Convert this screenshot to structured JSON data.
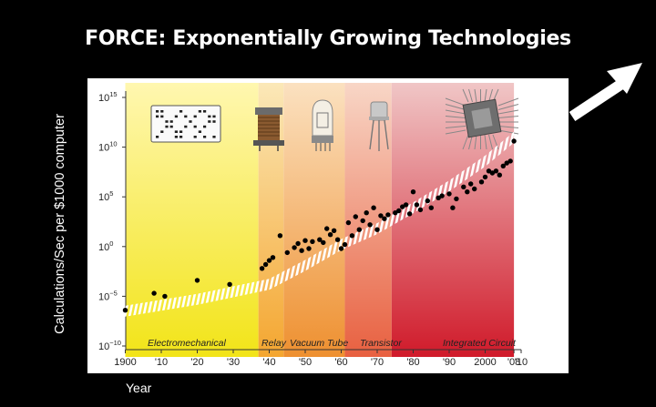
{
  "page": {
    "title": "FORCE: Exponentially Growing Technologies",
    "colors": {
      "background": "#000000",
      "panel": "#ffffff",
      "trend": "#ffffff",
      "points": "#000000"
    }
  },
  "chart_data": {
    "type": "scatter",
    "title": "",
    "xlabel": "Year",
    "ylabel": "Calculations/Sec per $1000 computer",
    "xlim": [
      1900,
      2010
    ],
    "ylim": [
      -10,
      15
    ],
    "y_scale": "log10",
    "x_ticks": [
      "1900",
      "'10",
      "'20",
      "'30",
      "'40",
      "'50",
      "'60",
      "'70",
      "'80",
      "'90",
      "2000",
      "'08",
      "'10"
    ],
    "y_ticks": [
      -10,
      -5,
      0,
      5,
      10,
      15
    ],
    "y_tick_label_base": "10",
    "eras": [
      {
        "name": "Electromechanical",
        "start": 1900,
        "end": 1937,
        "color_start": "#fff7b0",
        "color_end": "#f2e418",
        "icon": "punch-card-icon"
      },
      {
        "name": "Relay",
        "start": 1937,
        "end": 1944,
        "color_start": "#fbe8b8",
        "color_end": "#f4a630",
        "icon": "relay-icon"
      },
      {
        "name": "Vacuum Tube",
        "start": 1944,
        "end": 1961,
        "color_start": "#fbe1c0",
        "color_end": "#ee9030",
        "icon": "vacuum-tube-icon"
      },
      {
        "name": "Transistor",
        "start": 1961,
        "end": 1974,
        "color_start": "#f8d6c6",
        "color_end": "#e86040",
        "icon": "transistor-icon"
      },
      {
        "name": "Integrated Circuit",
        "start": 1974,
        "end": 2008,
        "color_start": "#f0c6c6",
        "color_end": "#d01a2a",
        "icon": "microchip-icon"
      }
    ],
    "trend": [
      [
        1900,
        -6.5
      ],
      [
        1920,
        -5.3
      ],
      [
        1940,
        -3.8
      ],
      [
        1950,
        -1.9
      ],
      [
        1960,
        0.2
      ],
      [
        1970,
        1.8
      ],
      [
        1980,
        3.9
      ],
      [
        1990,
        6.1
      ],
      [
        2000,
        8.6
      ],
      [
        2008,
        11
      ]
    ],
    "points": [
      [
        1900,
        -6.4
      ],
      [
        1908,
        -4.7
      ],
      [
        1911,
        -5
      ],
      [
        1920,
        -3.4
      ],
      [
        1929,
        -3.8
      ],
      [
        1938,
        -2.2
      ],
      [
        1939,
        -1.8
      ],
      [
        1940,
        -1.4
      ],
      [
        1941,
        -1.1
      ],
      [
        1943,
        1.1
      ],
      [
        1945,
        -0.6
      ],
      [
        1947,
        -0.1
      ],
      [
        1948,
        0.3
      ],
      [
        1949,
        -0.4
      ],
      [
        1950,
        0.6
      ],
      [
        1951,
        -0.2
      ],
      [
        1952,
        0.5
      ],
      [
        1954,
        0.7
      ],
      [
        1955,
        0.4
      ],
      [
        1956,
        1.8
      ],
      [
        1957,
        1.2
      ],
      [
        1958,
        1.6
      ],
      [
        1959,
        0.7
      ],
      [
        1960,
        -0.2
      ],
      [
        1961,
        0.2
      ],
      [
        1962,
        2.4
      ],
      [
        1963,
        1.1
      ],
      [
        1964,
        3
      ],
      [
        1965,
        1.7
      ],
      [
        1966,
        2.6
      ],
      [
        1967,
        3.4
      ],
      [
        1968,
        2.2
      ],
      [
        1969,
        3.9
      ],
      [
        1970,
        1.7
      ],
      [
        1971,
        3.1
      ],
      [
        1972,
        2.8
      ],
      [
        1973,
        3.2
      ],
      [
        1975,
        3.4
      ],
      [
        1976,
        3.6
      ],
      [
        1977,
        4
      ],
      [
        1978,
        4.2
      ],
      [
        1979,
        3.3
      ],
      [
        1980,
        5.5
      ],
      [
        1981,
        4.2
      ],
      [
        1982,
        3.7
      ],
      [
        1984,
        4.6
      ],
      [
        1985,
        3.9
      ],
      [
        1987,
        4.9
      ],
      [
        1988,
        5.1
      ],
      [
        1990,
        5.3
      ],
      [
        1991,
        3.9
      ],
      [
        1992,
        4.8
      ],
      [
        1994,
        6
      ],
      [
        1995,
        5.5
      ],
      [
        1996,
        6.3
      ],
      [
        1997,
        5.8
      ],
      [
        1999,
        6.5
      ],
      [
        2000,
        7
      ],
      [
        2001,
        7.6
      ],
      [
        2002,
        7.4
      ],
      [
        2003,
        7.6
      ],
      [
        2004,
        7.2
      ],
      [
        2005,
        8.1
      ],
      [
        2006,
        8.4
      ],
      [
        2007,
        8.6
      ],
      [
        2008,
        10.6
      ]
    ]
  }
}
